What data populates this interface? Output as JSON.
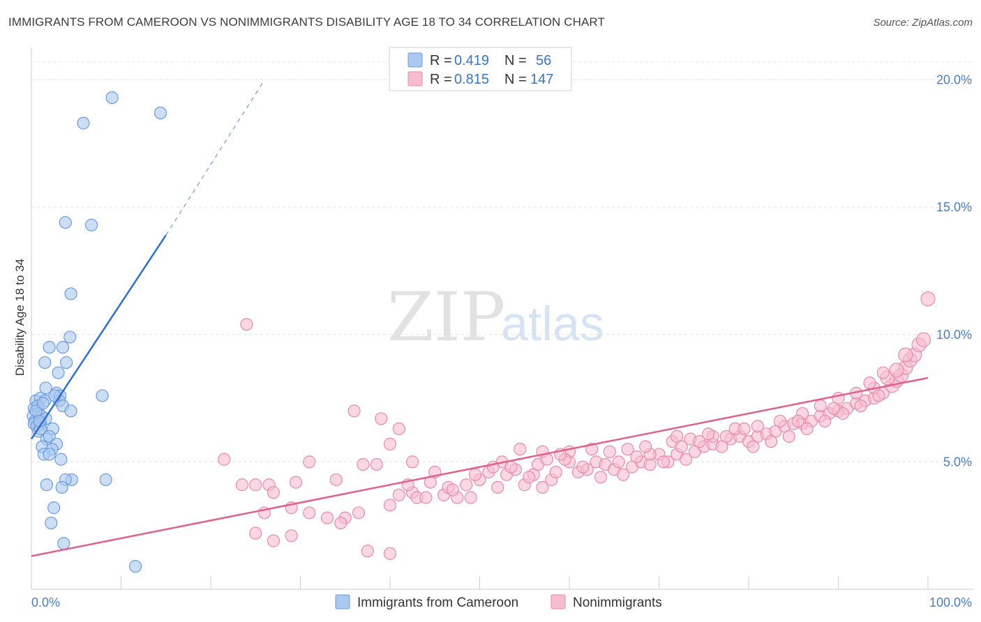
{
  "header": {
    "title": "IMMIGRANTS FROM CAMEROON VS NONIMMIGRANTS DISABILITY AGE 18 TO 34 CORRELATION CHART",
    "source": "Source: ZipAtlas.com"
  },
  "watermark": {
    "zip": "ZIP",
    "atlas": "atlas"
  },
  "legend": {
    "r_label": "R =",
    "n_label": "N =",
    "rows": [
      {
        "r": "0.419",
        "n": "56"
      },
      {
        "r": "0.815",
        "n": "147"
      }
    ]
  },
  "colors": {
    "blue_fill": "#aac8f0",
    "blue_stroke": "#6a9be0",
    "blue_line": "#2f6fd0",
    "pink_fill": "#f6bcd0",
    "pink_stroke": "#e88aaa",
    "pink_line": "#e0608e"
  },
  "chart_data": {
    "type": "scatter",
    "title": "IMMIGRANTS FROM CAMEROON VS NONIMMIGRANTS DISABILITY AGE 18 TO 34 CORRELATION CHART",
    "xlabel": "",
    "ylabel": "Disability Age 18 to 34",
    "xlim": [
      0,
      100
    ],
    "ylim": [
      0,
      21
    ],
    "x_tick_labels": [
      "0.0%",
      "100.0%"
    ],
    "y_ticks": [
      5,
      10,
      15,
      20
    ],
    "y_tick_labels": [
      "5.0%",
      "10.0%",
      "15.0%",
      "20.0%"
    ],
    "grid": true,
    "legend_position": "top-center",
    "series": [
      {
        "name": "Immigrants from Cameroon",
        "r": 0.419,
        "n": 56,
        "trend": {
          "x0": 0.0,
          "y0": 5.9,
          "x1": 15.0,
          "y1": 13.9,
          "dash_to_x": 26.0,
          "dash_to_y": 20.0
        },
        "points": [
          [
            9.0,
            19.3
          ],
          [
            5.8,
            18.3
          ],
          [
            14.4,
            18.7
          ],
          [
            3.8,
            14.4
          ],
          [
            6.7,
            14.3
          ],
          [
            4.4,
            11.6
          ],
          [
            4.3,
            9.9
          ],
          [
            2.0,
            9.5
          ],
          [
            3.5,
            9.5
          ],
          [
            1.5,
            8.9
          ],
          [
            3.9,
            8.9
          ],
          [
            3.0,
            8.5
          ],
          [
            1.6,
            7.9
          ],
          [
            2.8,
            7.7
          ],
          [
            3.2,
            7.6
          ],
          [
            0.5,
            7.4
          ],
          [
            1.0,
            7.5
          ],
          [
            1.5,
            7.4
          ],
          [
            7.9,
            7.6
          ],
          [
            3.1,
            7.4
          ],
          [
            0.3,
            7.1
          ],
          [
            0.7,
            7.2
          ],
          [
            3.5,
            7.2
          ],
          [
            4.4,
            7.0
          ],
          [
            0.2,
            6.8
          ],
          [
            0.8,
            6.9
          ],
          [
            1.1,
            6.8
          ],
          [
            0.4,
            6.6
          ],
          [
            1.6,
            6.7
          ],
          [
            0.3,
            6.5
          ],
          [
            0.6,
            6.4
          ],
          [
            1.0,
            6.5
          ],
          [
            0.8,
            6.2
          ],
          [
            2.4,
            6.3
          ],
          [
            1.7,
            5.9
          ],
          [
            2.0,
            6.0
          ],
          [
            2.8,
            5.7
          ],
          [
            1.2,
            5.6
          ],
          [
            2.3,
            5.5
          ],
          [
            1.4,
            5.3
          ],
          [
            2.0,
            5.3
          ],
          [
            3.3,
            5.1
          ],
          [
            4.5,
            4.3
          ],
          [
            3.8,
            4.3
          ],
          [
            8.3,
            4.3
          ],
          [
            1.7,
            4.1
          ],
          [
            3.4,
            4.0
          ],
          [
            2.5,
            3.2
          ],
          [
            2.2,
            2.6
          ],
          [
            3.6,
            1.8
          ],
          [
            11.6,
            0.9
          ],
          [
            1.0,
            6.3
          ],
          [
            0.5,
            7.0
          ],
          [
            1.3,
            7.3
          ],
          [
            0.9,
            6.6
          ],
          [
            2.6,
            7.6
          ]
        ]
      },
      {
        "name": "Nonimmigrants",
        "r": 0.815,
        "n": 147,
        "trend": {
          "x0": 0.0,
          "y0": 1.3,
          "x1": 100.0,
          "y1": 8.3
        },
        "points": [
          [
            24.0,
            10.4
          ],
          [
            36.0,
            7.0
          ],
          [
            39.0,
            6.7
          ],
          [
            41.0,
            6.3
          ],
          [
            40.0,
            5.7
          ],
          [
            31.0,
            5.0
          ],
          [
            21.5,
            5.1
          ],
          [
            42.5,
            5.0
          ],
          [
            38.5,
            4.9
          ],
          [
            37.0,
            4.9
          ],
          [
            45.0,
            4.6
          ],
          [
            26.5,
            4.1
          ],
          [
            25.0,
            4.1
          ],
          [
            23.5,
            4.1
          ],
          [
            29.5,
            4.2
          ],
          [
            34.0,
            4.3
          ],
          [
            27.0,
            3.8
          ],
          [
            41.0,
            3.7
          ],
          [
            42.5,
            3.8
          ],
          [
            46.0,
            3.7
          ],
          [
            40.0,
            3.3
          ],
          [
            29.0,
            3.2
          ],
          [
            26.0,
            3.0
          ],
          [
            31.0,
            3.0
          ],
          [
            36.5,
            3.0
          ],
          [
            35.0,
            2.8
          ],
          [
            33.0,
            2.8
          ],
          [
            34.5,
            2.6
          ],
          [
            25.0,
            2.2
          ],
          [
            29.0,
            2.1
          ],
          [
            27.0,
            1.9
          ],
          [
            37.5,
            1.5
          ],
          [
            40.0,
            1.4
          ],
          [
            43.0,
            3.6
          ],
          [
            44.5,
            4.2
          ],
          [
            46.5,
            4.0
          ],
          [
            47.5,
            3.6
          ],
          [
            48.5,
            4.1
          ],
          [
            49.0,
            3.6
          ],
          [
            50.0,
            4.3
          ],
          [
            51.0,
            4.6
          ],
          [
            52.0,
            4.0
          ],
          [
            53.0,
            4.5
          ],
          [
            54.0,
            4.7
          ],
          [
            55.0,
            4.1
          ],
          [
            56.0,
            4.5
          ],
          [
            57.0,
            4.0
          ],
          [
            58.0,
            4.3
          ],
          [
            52.5,
            5.0
          ],
          [
            56.5,
            4.9
          ],
          [
            60.0,
            5.0
          ],
          [
            61.0,
            4.6
          ],
          [
            62.0,
            4.7
          ],
          [
            63.0,
            5.0
          ],
          [
            64.0,
            4.9
          ],
          [
            65.0,
            4.7
          ],
          [
            66.0,
            4.5
          ],
          [
            67.0,
            4.8
          ],
          [
            68.0,
            5.0
          ],
          [
            69.0,
            4.9
          ],
          [
            70.0,
            5.3
          ],
          [
            71.0,
            5.0
          ],
          [
            72.0,
            5.3
          ],
          [
            73.0,
            5.1
          ],
          [
            74.0,
            5.4
          ],
          [
            75.0,
            5.6
          ],
          [
            76.0,
            5.7
          ],
          [
            77.0,
            5.6
          ],
          [
            78.0,
            5.9
          ],
          [
            79.0,
            6.0
          ],
          [
            80.0,
            5.8
          ],
          [
            81.0,
            6.0
          ],
          [
            82.0,
            6.1
          ],
          [
            83.0,
            6.2
          ],
          [
            84.0,
            6.4
          ],
          [
            85.0,
            6.5
          ],
          [
            86.0,
            6.5
          ],
          [
            87.0,
            6.6
          ],
          [
            88.0,
            6.8
          ],
          [
            89.0,
            6.9
          ],
          [
            90.0,
            7.0
          ],
          [
            91.0,
            7.1
          ],
          [
            92.0,
            7.3
          ],
          [
            93.0,
            7.4
          ],
          [
            94.0,
            7.5
          ],
          [
            95.0,
            7.7
          ],
          [
            96.0,
            8.0
          ],
          [
            96.5,
            8.2
          ],
          [
            97.0,
            8.4
          ],
          [
            97.5,
            8.7
          ],
          [
            98.0,
            9.0
          ],
          [
            98.5,
            9.2
          ],
          [
            99.0,
            9.6
          ],
          [
            99.5,
            9.8
          ],
          [
            100.0,
            11.4
          ],
          [
            57.0,
            5.4
          ],
          [
            60.0,
            5.4
          ],
          [
            62.5,
            5.5
          ],
          [
            66.5,
            5.5
          ],
          [
            69.0,
            5.3
          ],
          [
            71.5,
            5.8
          ],
          [
            73.5,
            5.9
          ],
          [
            76.0,
            6.0
          ],
          [
            78.5,
            6.3
          ],
          [
            81.0,
            6.4
          ],
          [
            83.5,
            6.6
          ],
          [
            86.0,
            6.9
          ],
          [
            88.0,
            7.2
          ],
          [
            90.0,
            7.5
          ],
          [
            92.0,
            7.7
          ],
          [
            94.0,
            7.9
          ],
          [
            95.5,
            8.3
          ],
          [
            70.5,
            5.0
          ],
          [
            72.5,
            5.6
          ],
          [
            74.5,
            5.8
          ],
          [
            77.5,
            6.0
          ],
          [
            80.5,
            5.6
          ],
          [
            82.5,
            5.8
          ],
          [
            84.5,
            6.0
          ],
          [
            86.5,
            6.3
          ],
          [
            88.5,
            6.6
          ],
          [
            90.5,
            6.9
          ],
          [
            92.5,
            7.2
          ],
          [
            94.5,
            7.6
          ],
          [
            93.5,
            8.1
          ],
          [
            95.0,
            8.5
          ],
          [
            96.5,
            8.6
          ],
          [
            97.5,
            9.2
          ],
          [
            53.5,
            4.8
          ],
          [
            55.5,
            4.4
          ],
          [
            58.5,
            4.6
          ],
          [
            59.5,
            5.1
          ],
          [
            61.5,
            4.8
          ],
          [
            63.5,
            4.4
          ],
          [
            65.5,
            5.0
          ],
          [
            67.5,
            5.2
          ],
          [
            42.0,
            4.1
          ],
          [
            44.0,
            3.6
          ],
          [
            47.0,
            3.9
          ],
          [
            49.5,
            4.5
          ],
          [
            51.5,
            4.8
          ],
          [
            54.5,
            5.5
          ],
          [
            57.5,
            5.1
          ],
          [
            59.0,
            5.3
          ],
          [
            64.5,
            5.4
          ],
          [
            68.5,
            5.6
          ],
          [
            72.0,
            6.0
          ],
          [
            75.5,
            6.1
          ],
          [
            79.5,
            6.3
          ],
          [
            85.5,
            6.6
          ],
          [
            89.5,
            7.1
          ]
        ]
      }
    ]
  },
  "bottom_legend": [
    {
      "label": "Immigrants from Cameroon"
    },
    {
      "label": "Nonimmigrants"
    }
  ]
}
